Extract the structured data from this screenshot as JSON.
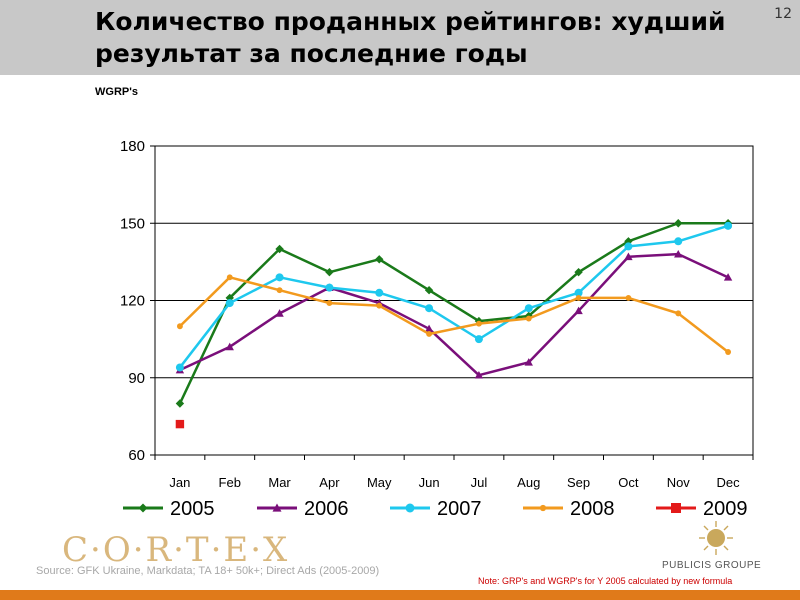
{
  "slide": {
    "title": "Количество проданных рейтингов: худший результат за последние годы",
    "page_number": "12",
    "unit_label": "WGRP's",
    "source": "Source: GFK Ukraine, Markdata; TA 18+ 50k+; Direct Ads (2005-2009)",
    "note": "Note: GRP's and WGRP's for Y 2005 calculated by new formula"
  },
  "logos": {
    "cortex_text": "C·O·R·T·E·X",
    "cortex_color": "#d9b77d",
    "publicis_text": "PUBLICIS GROUPE"
  },
  "chart_data": {
    "type": "line",
    "title": "",
    "xlabel": "",
    "ylabel": "WGRP's",
    "categories": [
      "Jan",
      "Feb",
      "Mar",
      "Apr",
      "May",
      "Jun",
      "Jul",
      "Aug",
      "Sep",
      "Oct",
      "Nov",
      "Dec"
    ],
    "ylim": [
      60,
      180
    ],
    "yticks": [
      60,
      90,
      120,
      150,
      180
    ],
    "grid": true,
    "legend_position": "bottom",
    "series": [
      {
        "name": "2005",
        "color": "#1a7a1a",
        "marker": "diamond",
        "values": [
          80,
          121,
          140,
          131,
          136,
          124,
          112,
          114,
          131,
          143,
          150,
          150
        ]
      },
      {
        "name": "2006",
        "color": "#7a0f7a",
        "marker": "triangle",
        "values": [
          93,
          102,
          115,
          125,
          119,
          109,
          91,
          96,
          116,
          137,
          138,
          129
        ]
      },
      {
        "name": "2007",
        "color": "#1ec8ee",
        "marker": "circle",
        "values": [
          94,
          119,
          129,
          125,
          123,
          117,
          105,
          117,
          123,
          141,
          143,
          149
        ]
      },
      {
        "name": "2008",
        "color": "#f29a1e",
        "marker": "dot",
        "values": [
          110,
          129,
          124,
          119,
          118,
          107,
          111,
          113,
          121,
          121,
          115,
          100
        ]
      },
      {
        "name": "2009",
        "color": "#e31a1a",
        "marker": "square",
        "values": [
          72,
          null,
          null,
          null,
          null,
          null,
          null,
          null,
          null,
          null,
          null,
          null
        ]
      }
    ]
  }
}
